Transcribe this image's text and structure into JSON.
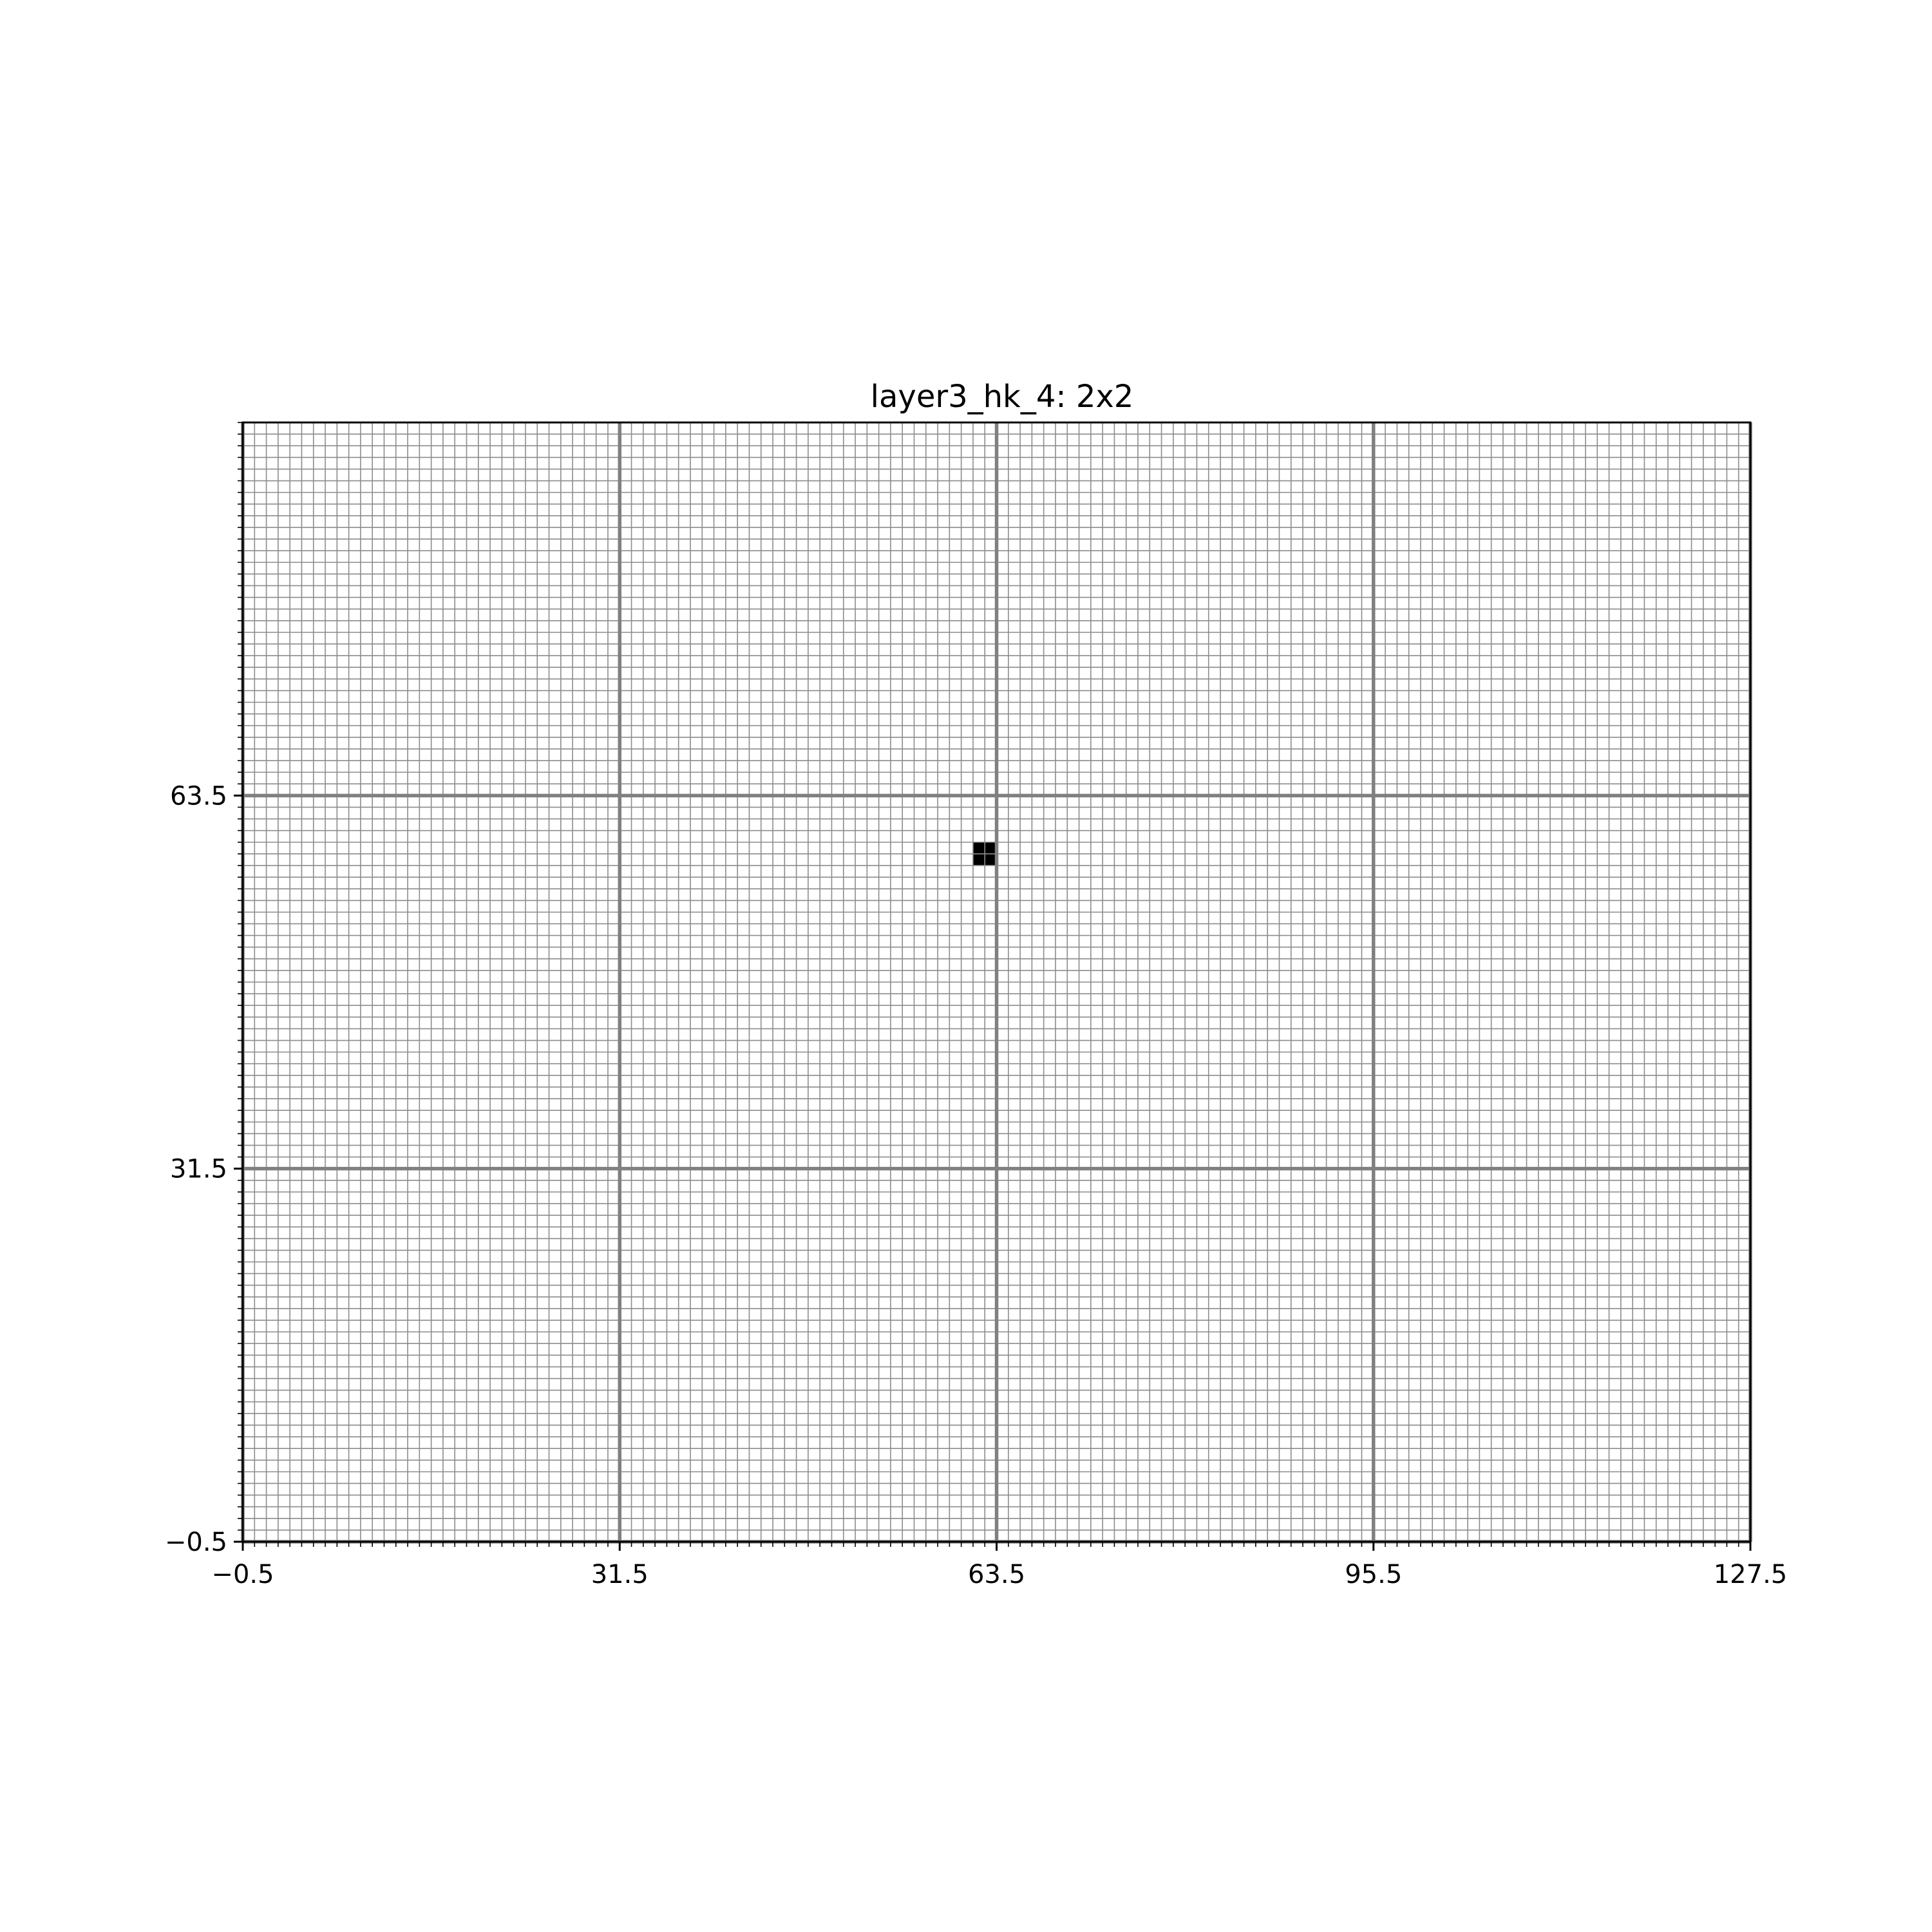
{
  "chart_data": {
    "type": "heatmap",
    "title": "layer3_hk_4: 2x2",
    "xlabel": "",
    "ylabel": "",
    "xlim": [
      -0.5,
      127.5
    ],
    "ylim": [
      -0.5,
      95.5
    ],
    "xticks": [
      -0.5,
      31.5,
      63.5,
      95.5,
      127.5
    ],
    "xtick_labels": [
      "−0.5",
      "31.5",
      "63.5",
      "95.5",
      "127.5"
    ],
    "yticks": [
      -0.5,
      31.5,
      63.5
    ],
    "ytick_labels": [
      "−0.5",
      "31.5",
      "63.5"
    ],
    "grid": true,
    "minor_grid_step": 1,
    "major_grid_step": 32,
    "background_color": "#ffffff",
    "minor_grid_color": "#8c8c8c",
    "major_grid_color": "#808080",
    "cell_color": "#000000",
    "filled_cells": [
      {
        "x": 62,
        "y": 58,
        "value": 1
      },
      {
        "x": 63,
        "y": 58,
        "value": 1
      },
      {
        "x": 62,
        "y": 59,
        "value": 1
      },
      {
        "x": 63,
        "y": 59,
        "value": 1
      }
    ]
  }
}
